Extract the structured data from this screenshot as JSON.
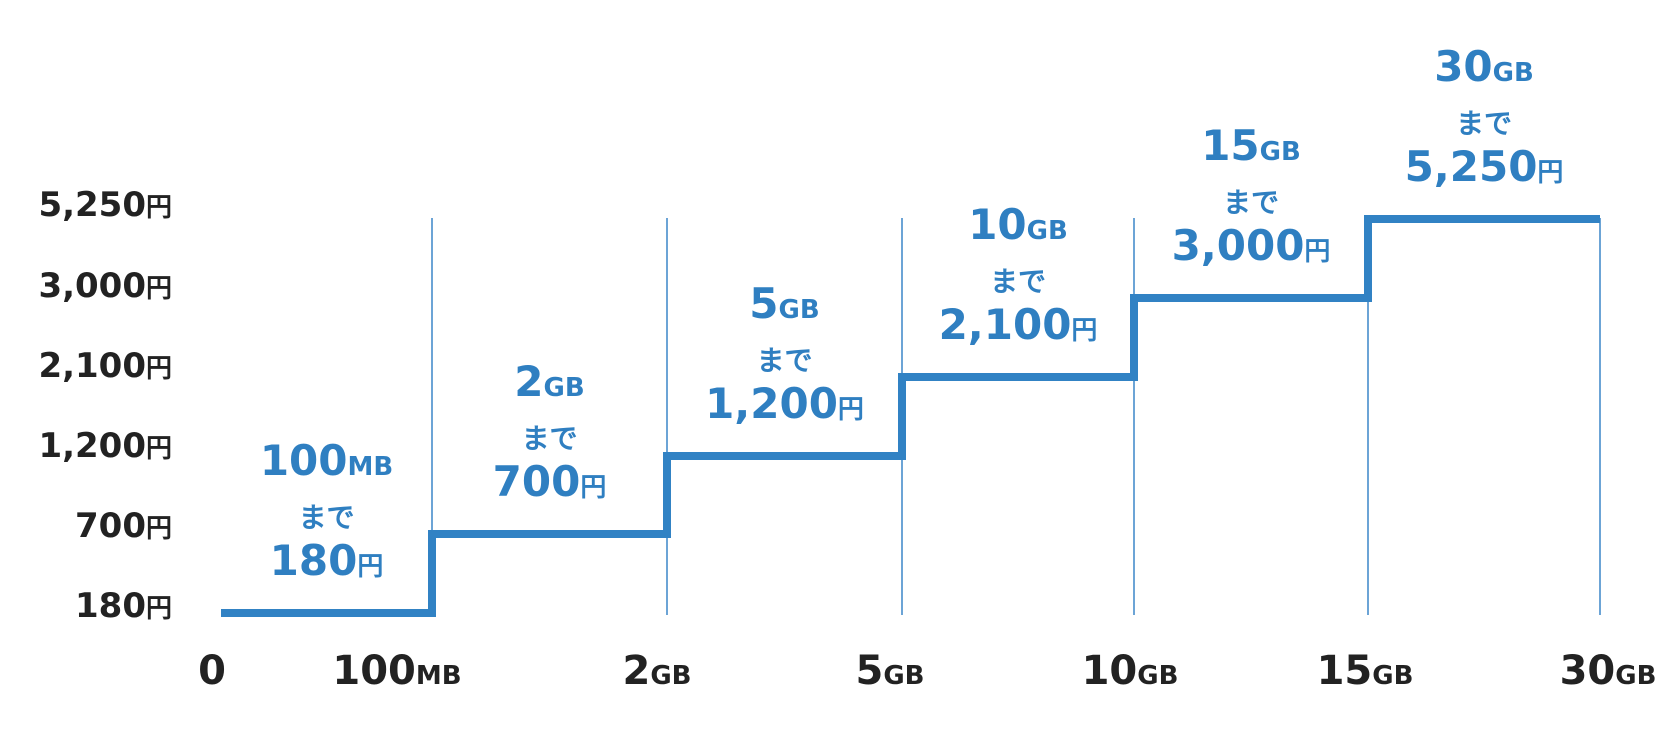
{
  "chart_data": {
    "type": "line",
    "step": true,
    "title": "",
    "xlabel": "",
    "ylabel": "",
    "grid": "vertical",
    "colors": {
      "line": "#3182c4",
      "gridline": "#3b86c8",
      "label": "#2f7fc1",
      "axis_text": "#222222"
    },
    "y_ticks": [
      {
        "num": "180",
        "unit": "円"
      },
      {
        "num": "700",
        "unit": "円"
      },
      {
        "num": "1,200",
        "unit": "円"
      },
      {
        "num": "2,100",
        "unit": "円"
      },
      {
        "num": "3,000",
        "unit": "円"
      },
      {
        "num": "5,250",
        "unit": "円"
      }
    ],
    "x_ticks": [
      {
        "num": "0",
        "unit": ""
      },
      {
        "num": "100",
        "unit": "MB"
      },
      {
        "num": "2",
        "unit": "GB"
      },
      {
        "num": "5",
        "unit": "GB"
      },
      {
        "num": "10",
        "unit": "GB"
      },
      {
        "num": "15",
        "unit": "GB"
      },
      {
        "num": "30",
        "unit": "GB"
      }
    ],
    "steps": [
      {
        "from": 0,
        "to": 1,
        "level": 0,
        "cap_num": "100",
        "cap_unit": "MB",
        "made": "まで",
        "price_num": "180",
        "price_unit": "円"
      },
      {
        "from": 1,
        "to": 2,
        "level": 1,
        "cap_num": "2",
        "cap_unit": "GB",
        "made": "まで",
        "price_num": "700",
        "price_unit": "円"
      },
      {
        "from": 2,
        "to": 3,
        "level": 2,
        "cap_num": "5",
        "cap_unit": "GB",
        "made": "まで",
        "price_num": "1,200",
        "price_unit": "円"
      },
      {
        "from": 3,
        "to": 4,
        "level": 3,
        "cap_num": "10",
        "cap_unit": "GB",
        "made": "まで",
        "price_num": "2,100",
        "price_unit": "円"
      },
      {
        "from": 4,
        "to": 5,
        "level": 4,
        "cap_num": "15",
        "cap_unit": "GB",
        "made": "まで",
        "price_num": "3,000",
        "price_unit": "円"
      },
      {
        "from": 5,
        "to": 6,
        "level": 5,
        "cap_num": "30",
        "cap_unit": "GB",
        "made": "まで",
        "price_num": "5,250",
        "price_unit": "円"
      }
    ]
  }
}
